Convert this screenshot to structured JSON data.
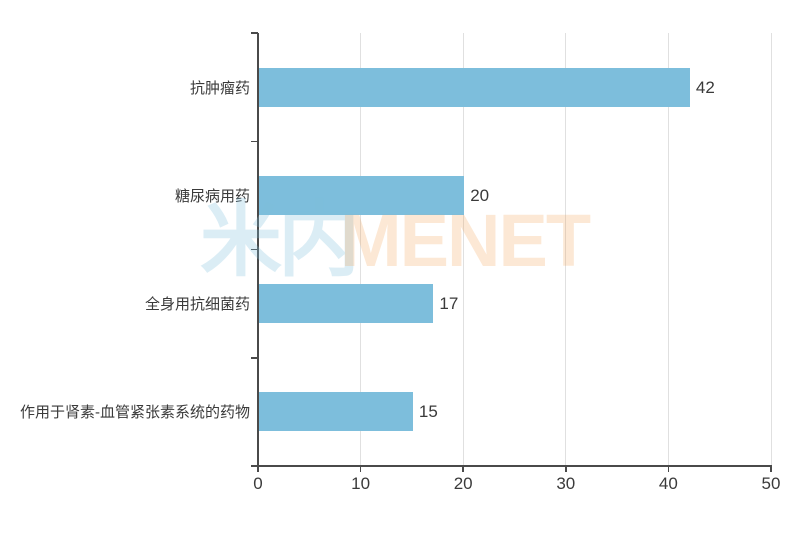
{
  "chart_data": {
    "type": "bar",
    "orientation": "horizontal",
    "title": "",
    "xlabel": "",
    "ylabel": "",
    "categories": [
      "抗肿瘤药",
      "糖尿病用药",
      "全身用抗细菌药",
      "作用于肾素-血管紧张素系统的药物"
    ],
    "values": [
      42,
      20,
      17,
      15
    ],
    "data_labels": [
      "42",
      "20",
      "17",
      "15"
    ],
    "xlim": [
      0,
      50
    ],
    "x_ticks": [
      0,
      10,
      20,
      30,
      40,
      50
    ],
    "grid": "vertical gridlines at every 10 units",
    "legend": "none",
    "bar_color": "#7dbedc",
    "axis_color": "#4a4a4a",
    "gridline_color": "#e0e0e0",
    "text_color": "#3a3a3a"
  },
  "watermark": {
    "cn": "米内",
    "en": "MENET"
  }
}
